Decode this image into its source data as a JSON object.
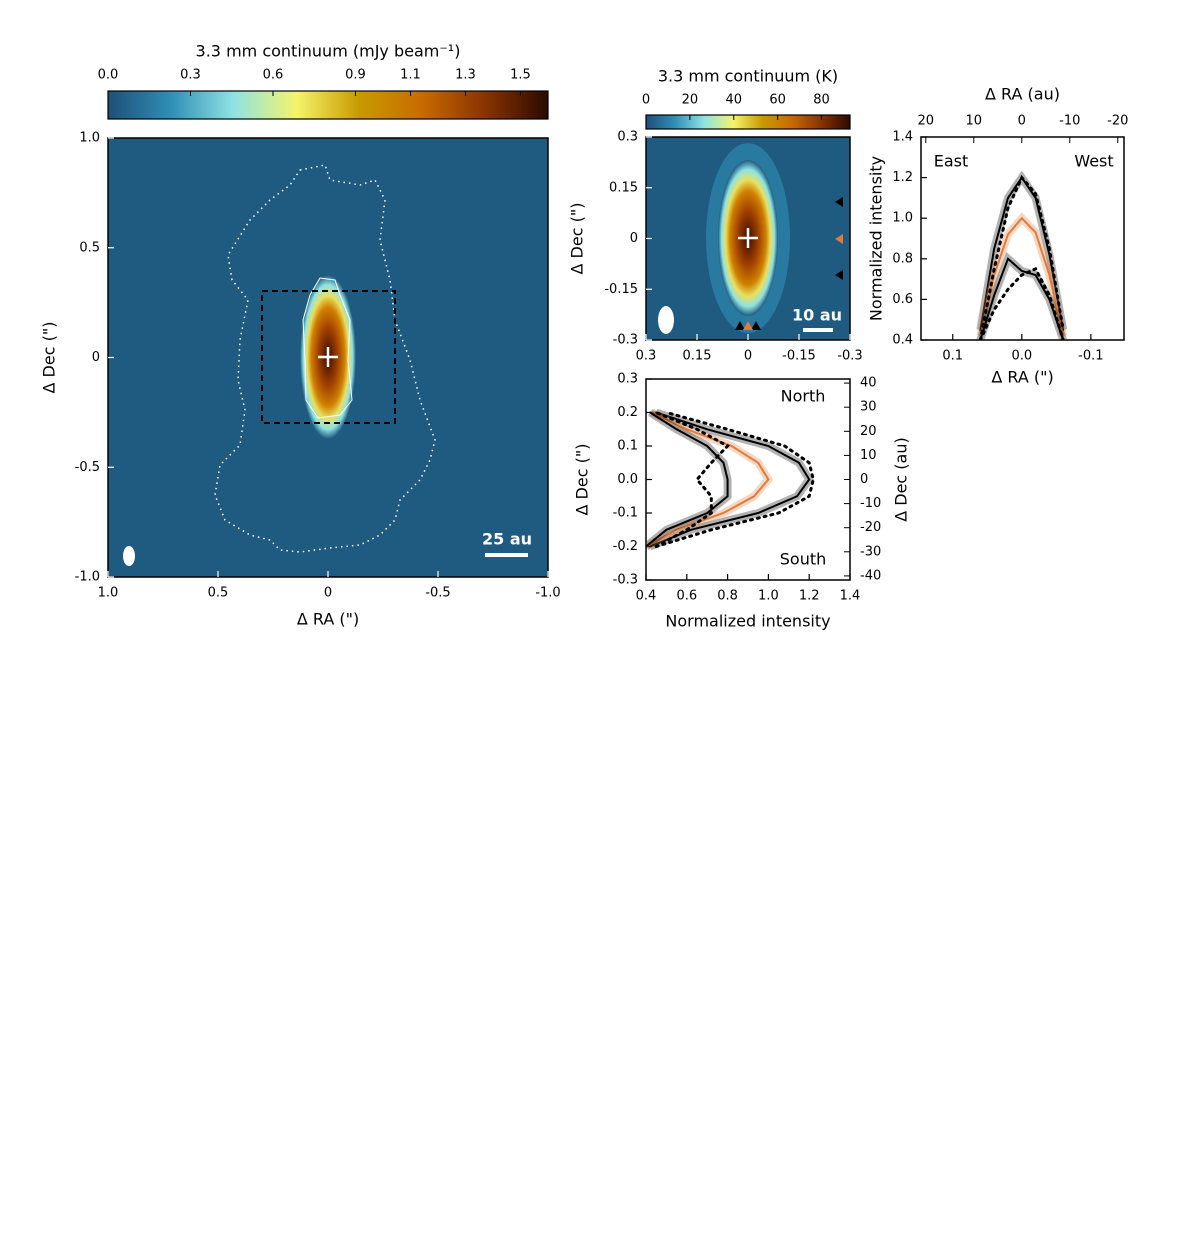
{
  "chart_data": [
    {
      "type": "image",
      "colorbar_label": "3.3 mm continuum (mJy beam⁻¹)",
      "colorbar_lim": [
        0,
        1.6
      ],
      "colorbar_ticks": [
        {
          "value": 0,
          "label": "0.0"
        },
        0.3,
        0.6,
        0.9,
        1.1,
        1.3,
        1.5
      ],
      "colormap": [
        "#1f4f78",
        "#2f8fb5",
        "#8fe3e3",
        "#f4f46a",
        "#c89a00",
        "#c86a00",
        "#8a3300",
        "#2a0a00"
      ],
      "xlabel": "Δ RA (\")",
      "ylabel": "Δ Dec (\")",
      "xlim": [
        1,
        -1
      ],
      "ylim": [
        -1,
        1
      ],
      "xticks": [
        {
          "value": 1,
          "label": "1.0"
        },
        0.5,
        0,
        -0.5,
        {
          "value": -1,
          "label": "-1.0"
        }
      ],
      "yticks": [
        {
          "value": -1,
          "label": "-1.0"
        },
        -0.5,
        0,
        0.5,
        {
          "value": 1,
          "label": "1.0"
        }
      ],
      "scale_bar": "25 au"
    },
    {
      "type": "image",
      "colorbar_label": "3.3 mm continuum (K)",
      "colorbar_lim": [
        0,
        93
      ],
      "colorbar_ticks": [
        0,
        20,
        40,
        60,
        80
      ],
      "colormap": [
        "#1f4f78",
        "#2f8fb5",
        "#8fe3e3",
        "#f4f46a",
        "#c89a00",
        "#c86a00",
        "#8a3300",
        "#2a0a00"
      ],
      "ylabel": "Δ Dec (\")",
      "xlim": [
        0.3,
        -0.3
      ],
      "ylim": [
        -0.3,
        0.3
      ],
      "xticks": [
        0.3,
        0.15,
        0,
        -0.15,
        -0.3
      ],
      "yticks": [
        -0.3,
        -0.15,
        0,
        0.15,
        0.3
      ],
      "scale_bar": "10 au"
    },
    {
      "type": "line",
      "xlabel": "Δ RA (\")",
      "x2label": "Δ RA (au)",
      "ylabel": "Normalized intensity",
      "xlim": [
        0.146,
        -0.148
      ],
      "xticks": [
        0.1,
        {
          "value": 0,
          "label": "0.0"
        },
        -0.1
      ],
      "x2lim": [
        21,
        -21.3
      ],
      "x2ticks": [
        20,
        10,
        0,
        -10,
        -20
      ],
      "ylim": [
        0.4,
        1.4
      ],
      "yticks": [
        0.4,
        0.6,
        0.8,
        {
          "value": 1,
          "label": "1.0"
        },
        1.2,
        1.4
      ],
      "annotations": [
        "East",
        "West"
      ],
      "x": [
        0.06,
        0.04,
        0.02,
        0,
        -0.02,
        -0.04,
        -0.06
      ],
      "series": [
        {
          "color": "#000000",
          "style": "solid",
          "values": [
            0.45,
            0.85,
            1.1,
            1.2,
            1.1,
            0.82,
            0.45
          ]
        },
        {
          "color": "#e07b39",
          "style": "solid",
          "values": [
            0.42,
            0.72,
            0.92,
            1.0,
            0.93,
            0.72,
            0.42
          ]
        },
        {
          "color": "#000000",
          "style": "solid",
          "values": [
            0.4,
            0.62,
            0.8,
            0.74,
            0.72,
            0.6,
            0.4
          ]
        },
        {
          "color": "#000000",
          "style": "dotted",
          "values": [
            0.4,
            0.75,
            1.05,
            1.2,
            1.12,
            0.85,
            0.45
          ]
        },
        {
          "color": "#000000",
          "style": "dotted",
          "values": [
            0.4,
            0.55,
            0.65,
            0.72,
            0.75,
            0.62,
            0.4
          ]
        }
      ]
    },
    {
      "type": "line",
      "orientation": "horizontal",
      "xlabel": "Normalized intensity",
      "ylabel": "Δ Dec (\")",
      "y2label": "Δ Dec (au)",
      "xlim": [
        0.4,
        1.4
      ],
      "xticks": [
        0.4,
        0.6,
        0.8,
        {
          "value": 1,
          "label": "1.0"
        },
        1.2,
        1.4
      ],
      "ylim": [
        -0.3,
        0.3
      ],
      "yticks": [
        -0.3,
        -0.2,
        -0.1,
        {
          "value": 0,
          "label": "0.0"
        },
        0.1,
        0.2,
        0.3
      ],
      "y2lim": [
        -41.7,
        41.7
      ],
      "y2ticks": [
        -40,
        -30,
        -20,
        -10,
        0,
        10,
        20,
        30,
        40
      ],
      "annotations": [
        "North",
        "South"
      ],
      "y": [
        -0.2,
        -0.15,
        -0.1,
        -0.05,
        0,
        0.05,
        0.1,
        0.15,
        0.2
      ],
      "series": [
        {
          "color": "#000000",
          "style": "solid",
          "values": [
            0.42,
            0.62,
            0.95,
            1.14,
            1.2,
            1.15,
            1.0,
            0.7,
            0.45
          ]
        },
        {
          "color": "#e07b39",
          "style": "solid",
          "values": [
            0.4,
            0.55,
            0.78,
            0.93,
            1.0,
            0.95,
            0.82,
            0.6,
            0.43
          ]
        },
        {
          "color": "#000000",
          "style": "solid",
          "values": [
            0.4,
            0.5,
            0.7,
            0.8,
            0.8,
            0.78,
            0.7,
            0.55,
            0.42
          ]
        },
        {
          "color": "#000000",
          "style": "dotted",
          "values": [
            0.45,
            0.72,
            1.05,
            1.2,
            1.22,
            1.2,
            1.08,
            0.8,
            0.5
          ]
        },
        {
          "color": "#000000",
          "style": "dotted",
          "values": [
            0.45,
            0.6,
            0.72,
            0.72,
            0.65,
            0.72,
            0.8,
            0.65,
            0.45
          ]
        }
      ]
    }
  ]
}
